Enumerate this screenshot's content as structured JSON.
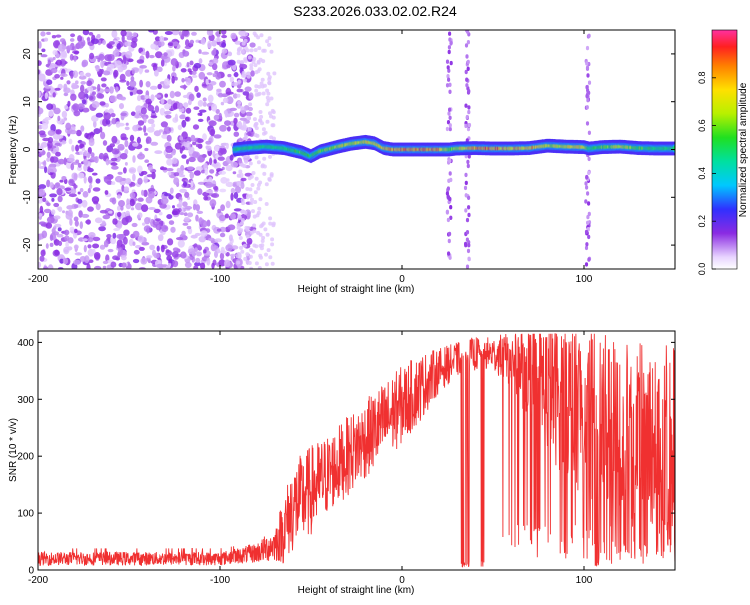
{
  "title": "S233.2026.033.02.02.R24",
  "chart_data": [
    {
      "type": "heatmap",
      "xlabel": "Height of straight line (km)",
      "ylabel": "Frequency (Hz)",
      "xlim": [
        -200,
        150
      ],
      "ylim": [
        -25,
        25
      ],
      "x_ticks": [
        -200,
        -100,
        0,
        100
      ],
      "x_tick_labels": [
        "-200",
        "-100",
        "0",
        "100"
      ],
      "y_ticks": [
        -20,
        -10,
        0,
        10,
        20
      ],
      "y_tick_labels": [
        "-20",
        "-10",
        "0",
        "10",
        "20"
      ],
      "noise_region_x": [
        -200,
        -90
      ],
      "signal_band": {
        "x": [
          -92,
          -85,
          -75,
          -65,
          -55,
          -50,
          -45,
          -35,
          -28,
          -20,
          -15,
          -10,
          -5,
          0,
          10,
          20,
          26,
          30,
          40,
          50,
          60,
          70,
          80,
          90,
          100,
          103,
          110,
          120,
          130,
          140,
          150
        ],
        "freq": [
          0,
          0.3,
          0.6,
          0.3,
          -0.6,
          -1.4,
          -0.4,
          0.6,
          1.2,
          1.6,
          1.3,
          0.3,
          0,
          0,
          0,
          0,
          0,
          0.2,
          0.3,
          0.2,
          0.2,
          0.3,
          0.8,
          0.6,
          0.5,
          0.2,
          0.5,
          0.6,
          0.3,
          0.2,
          0.2
        ],
        "amplitude": [
          0.3,
          0.4,
          0.45,
          0.5,
          0.6,
          0.55,
          0.6,
          0.7,
          0.7,
          0.75,
          0.75,
          0.8,
          0.85,
          0.9,
          0.9,
          0.85,
          0.6,
          0.7,
          0.85,
          0.9,
          0.8,
          0.85,
          0.7,
          0.75,
          0.75,
          0.5,
          0.6,
          0.7,
          0.6,
          0.5,
          0.5
        ]
      },
      "vertical_streaks_x": [
        26,
        36,
        102
      ]
    },
    {
      "type": "line",
      "xlabel": "Height of straight line (km)",
      "ylabel": "SNR (10 * v/v)",
      "xlim": [
        -200,
        150
      ],
      "ylim": [
        0,
        420
      ],
      "x_ticks": [
        -200,
        -100,
        0,
        100
      ],
      "x_tick_labels": [
        "-200",
        "-100",
        "0",
        "100"
      ],
      "y_ticks": [
        0,
        100,
        200,
        300,
        400
      ],
      "y_tick_labels": [
        "0",
        "100",
        "200",
        "300",
        "400"
      ],
      "series": [
        {
          "name": "SNR",
          "color": "#f03030",
          "x": [
            -200,
            -180,
            -160,
            -140,
            -120,
            -100,
            -90,
            -80,
            -70,
            -65,
            -60,
            -50,
            -40,
            -30,
            -20,
            -10,
            0,
            10,
            20,
            30,
            40,
            50,
            60,
            70,
            80,
            90,
            100,
            110,
            120,
            130,
            140,
            150
          ],
          "mean": [
            20,
            20,
            20,
            20,
            20,
            20,
            25,
            30,
            45,
            70,
            110,
            140,
            170,
            200,
            230,
            260,
            290,
            320,
            350,
            370,
            380,
            380,
            370,
            350,
            320,
            300,
            280,
            260,
            250,
            240,
            240,
            240
          ],
          "spread": [
            12,
            12,
            12,
            12,
            12,
            12,
            14,
            18,
            30,
            60,
            80,
            80,
            70,
            70,
            70,
            70,
            70,
            60,
            40,
            30,
            30,
            30,
            50,
            90,
            120,
            140,
            150,
            160,
            160,
            160,
            160,
            160
          ],
          "dropouts_x": [
            [
              32,
              37
            ],
            [
              43,
              45
            ],
            [
              106,
              108
            ]
          ]
        }
      ]
    }
  ],
  "colorbar": {
    "label": "Normalized spectral amplitude",
    "range": [
      0,
      1
    ],
    "ticks": [
      0.0,
      0.2,
      0.4,
      0.6,
      0.8
    ],
    "tick_labels": [
      "0.0",
      "0.2",
      "0.4",
      "0.6",
      "0.8"
    ]
  }
}
